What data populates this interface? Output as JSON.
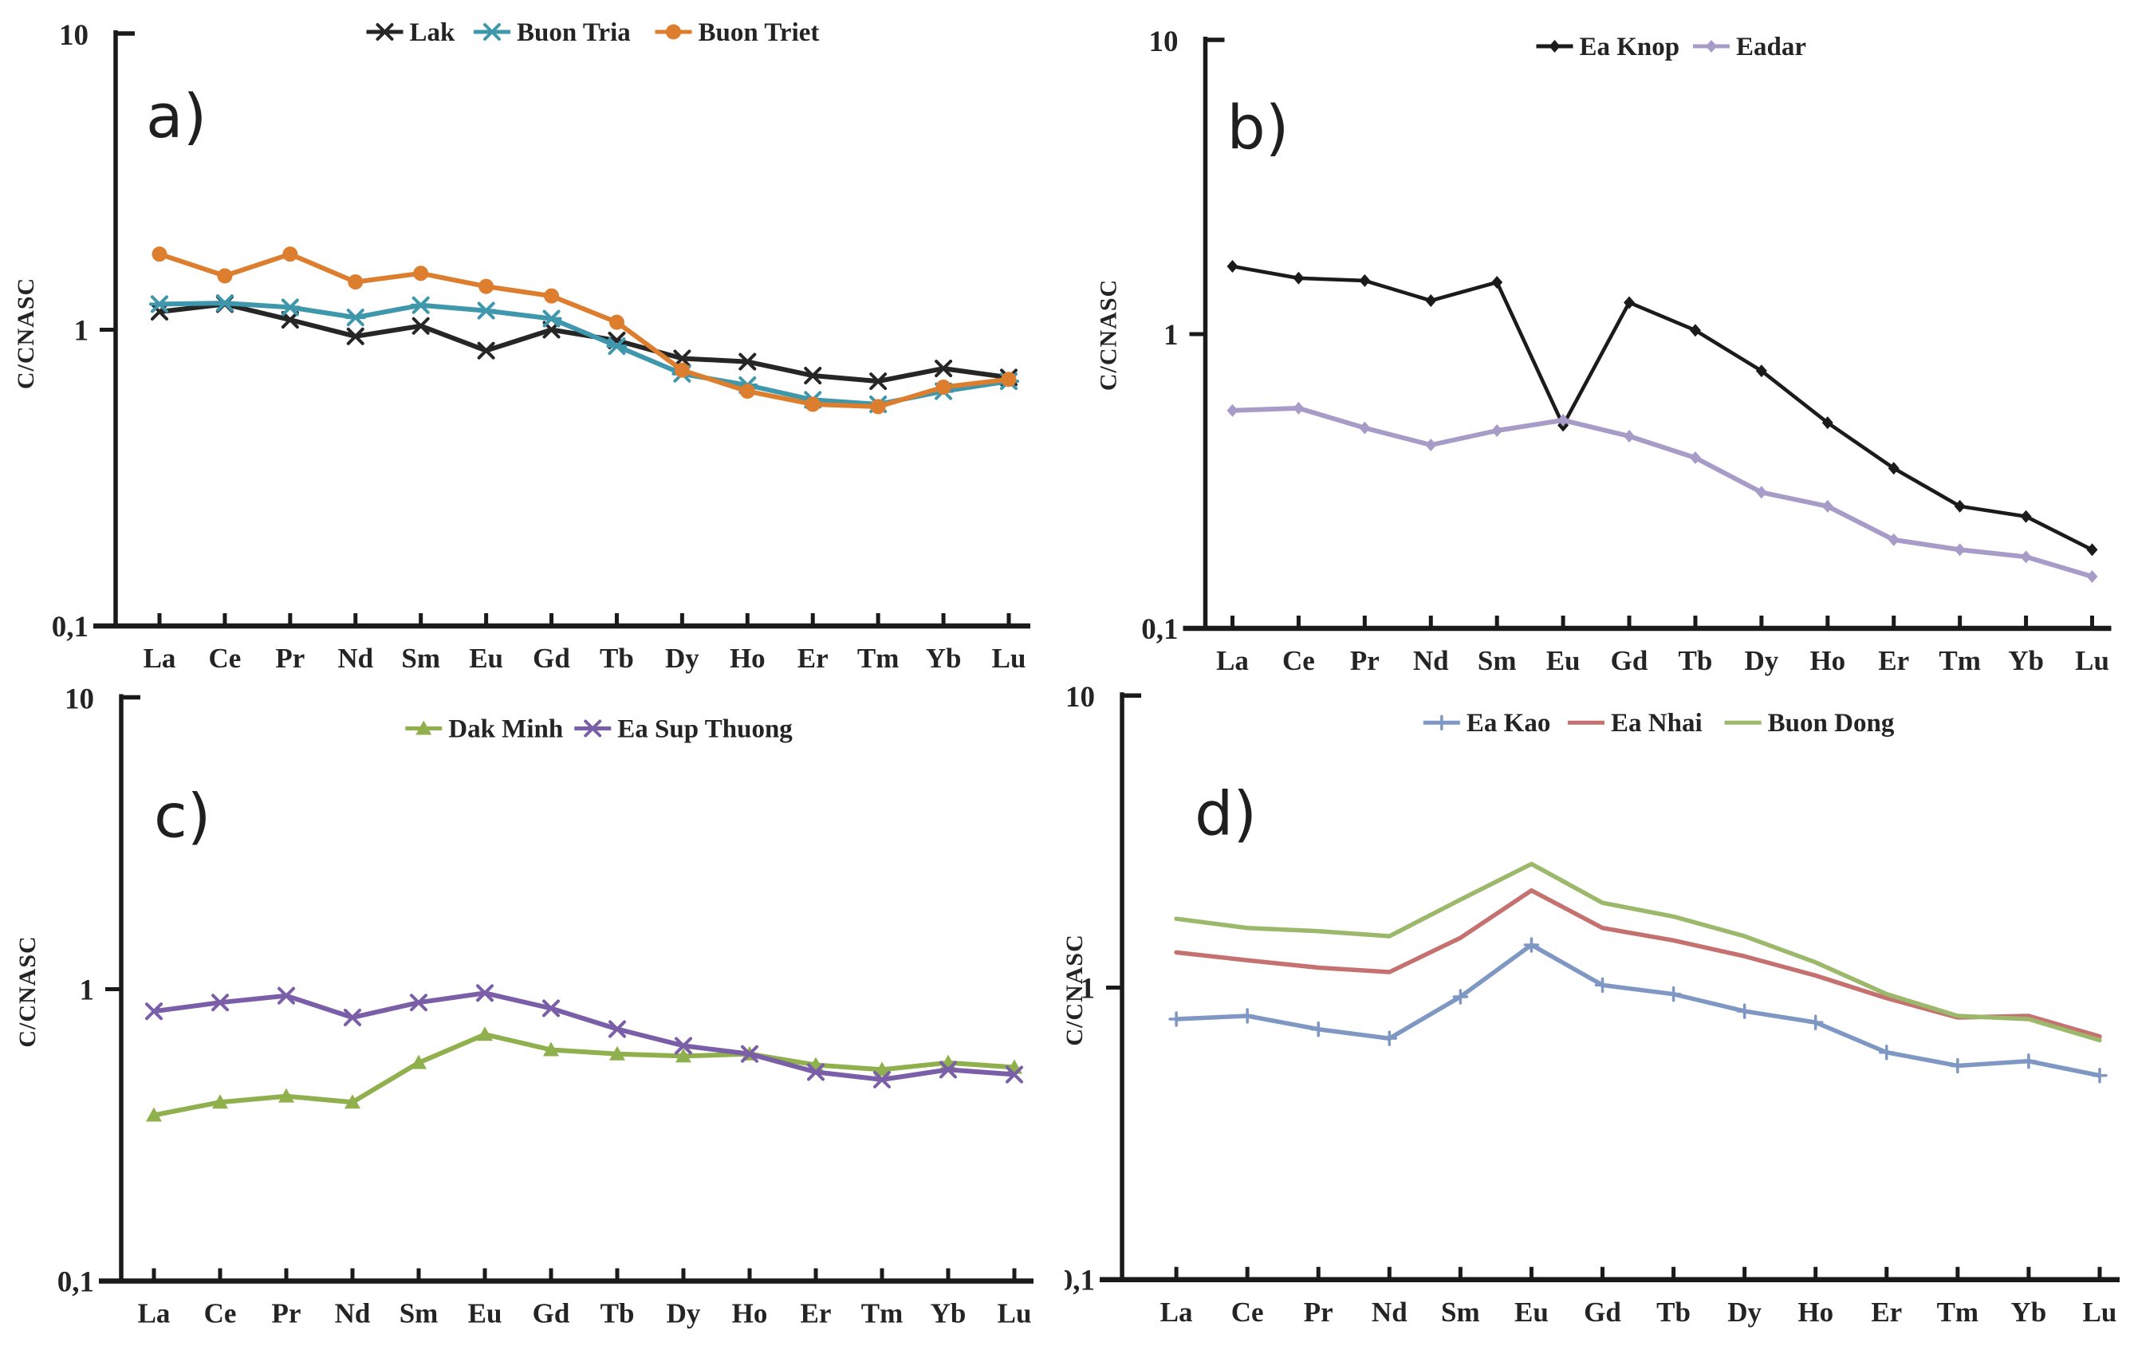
{
  "page": {
    "background_color": "#ffffff",
    "axis_color": "#1a1a1a",
    "text_color": "#242424",
    "description_visible_text_only": true
  },
  "chart_data": [
    {
      "type": "line",
      "panel_label": "a)",
      "ylabel": "C/CNASC",
      "xlabel": "",
      "ylim": [
        0.1,
        10
      ],
      "yscale": "log",
      "grid": false,
      "legend_position": "top",
      "yticks": [
        {
          "value": 10,
          "label": "10"
        },
        {
          "value": 1,
          "label": "1"
        },
        {
          "value": 0.1,
          "label": "0,1"
        }
      ],
      "categories": [
        "La",
        "Ce",
        "Pr",
        "Nd",
        "Sm",
        "Eu",
        "Gd",
        "Tb",
        "Dy",
        "Ho",
        "Er",
        "Tm",
        "Yb",
        "Lu"
      ],
      "series": [
        {
          "name": "Lak",
          "color": "#262626",
          "marker": "x",
          "values": [
            1.15,
            1.22,
            1.08,
            0.95,
            1.03,
            0.85,
            1.0,
            0.92,
            0.8,
            0.78,
            0.7,
            0.67,
            0.74,
            0.69
          ]
        },
        {
          "name": "Buon Tria",
          "color": "#3f97ac",
          "marker": "star",
          "values": [
            1.22,
            1.23,
            1.19,
            1.1,
            1.21,
            1.16,
            1.09,
            0.88,
            0.71,
            0.65,
            0.58,
            0.56,
            0.62,
            0.67
          ]
        },
        {
          "name": "Buon Triet",
          "color": "#dd7e2e",
          "marker": "circle",
          "values": [
            1.8,
            1.52,
            1.8,
            1.45,
            1.55,
            1.4,
            1.3,
            1.06,
            0.73,
            0.62,
            0.56,
            0.55,
            0.64,
            0.68
          ]
        }
      ]
    },
    {
      "type": "line",
      "panel_label": "b)",
      "ylabel": "C/CNASC",
      "xlabel": "",
      "ylim": [
        0.1,
        10
      ],
      "yscale": "log",
      "grid": false,
      "legend_position": "top",
      "yticks": [
        {
          "value": 10,
          "label": "10"
        },
        {
          "value": 1,
          "label": "1"
        },
        {
          "value": 0.1,
          "label": "0,1"
        }
      ],
      "categories": [
        "La",
        "Ce",
        "Pr",
        "Nd",
        "Sm",
        "Eu",
        "Gd",
        "Tb",
        "Dy",
        "Ho",
        "Er",
        "Tm",
        "Yb",
        "Lu"
      ],
      "series": [
        {
          "name": "Ea Knop",
          "color": "#1b1b1b",
          "marker": "diamond",
          "values": [
            1.7,
            1.55,
            1.52,
            1.3,
            1.5,
            0.49,
            1.28,
            1.03,
            0.75,
            0.5,
            0.35,
            0.26,
            0.24,
            0.185
          ]
        },
        {
          "name": "Eadar",
          "color": "#a79cc8",
          "marker": "diamond",
          "values": [
            0.55,
            0.56,
            0.48,
            0.42,
            0.47,
            0.51,
            0.45,
            0.38,
            0.29,
            0.26,
            0.2,
            0.185,
            0.175,
            0.15
          ]
        }
      ]
    },
    {
      "type": "line",
      "panel_label": "c)",
      "ylabel": "C/CNASC",
      "xlabel": "",
      "ylim": [
        0.1,
        10
      ],
      "yscale": "log",
      "grid": false,
      "legend_position": "top",
      "yticks": [
        {
          "value": 10,
          "label": "10"
        },
        {
          "value": 1,
          "label": "1"
        },
        {
          "value": 0.1,
          "label": "0,1"
        }
      ],
      "categories": [
        "La",
        "Ce",
        "Pr",
        "Nd",
        "Sm",
        "Eu",
        "Gd",
        "Tb",
        "Dy",
        "Ho",
        "Er",
        "Tm",
        "Yb",
        "Lu"
      ],
      "series": [
        {
          "name": "Dak Minh",
          "color": "#8fb04d",
          "marker": "triangle",
          "values": [
            0.37,
            0.41,
            0.43,
            0.41,
            0.56,
            0.7,
            0.62,
            0.6,
            0.59,
            0.6,
            0.55,
            0.53,
            0.56,
            0.54
          ]
        },
        {
          "name": "Ea Sup Thuong",
          "color": "#7a5fa8",
          "marker": "x",
          "values": [
            0.84,
            0.9,
            0.95,
            0.8,
            0.9,
            0.97,
            0.86,
            0.73,
            0.64,
            0.6,
            0.52,
            0.49,
            0.53,
            0.51
          ]
        }
      ]
    },
    {
      "type": "line",
      "panel_label": "d)",
      "ylabel": "C/CNASC",
      "xlabel": "",
      "ylim": [
        0.1,
        10
      ],
      "yscale": "log",
      "grid": false,
      "legend_position": "top",
      "yticks": [
        {
          "value": 10,
          "label": "10"
        },
        {
          "value": 1,
          "label": "1"
        },
        {
          "value": 0.1,
          "label": "0,1"
        }
      ],
      "categories": [
        "La",
        "Ce",
        "Pr",
        "Nd",
        "Sm",
        "Eu",
        "Gd",
        "Tb",
        "Dy",
        "Ho",
        "Er",
        "Tm",
        "Yb",
        "Lu"
      ],
      "series": [
        {
          "name": "Ea Kao",
          "color": "#7e97c3",
          "marker": "plus",
          "values": [
            0.78,
            0.8,
            0.72,
            0.67,
            0.93,
            1.4,
            1.02,
            0.95,
            0.83,
            0.76,
            0.6,
            0.54,
            0.56,
            0.5
          ]
        },
        {
          "name": "Ea Nhai",
          "color": "#c4716f",
          "marker": "none",
          "values": [
            1.32,
            1.24,
            1.17,
            1.13,
            1.48,
            2.15,
            1.6,
            1.45,
            1.28,
            1.1,
            0.92,
            0.79,
            0.8,
            0.68
          ]
        },
        {
          "name": "Buon Dong",
          "color": "#9cb86b",
          "marker": "none",
          "values": [
            1.72,
            1.6,
            1.56,
            1.5,
            2.0,
            2.65,
            1.95,
            1.75,
            1.5,
            1.22,
            0.95,
            0.8,
            0.78,
            0.66
          ]
        }
      ]
    }
  ]
}
